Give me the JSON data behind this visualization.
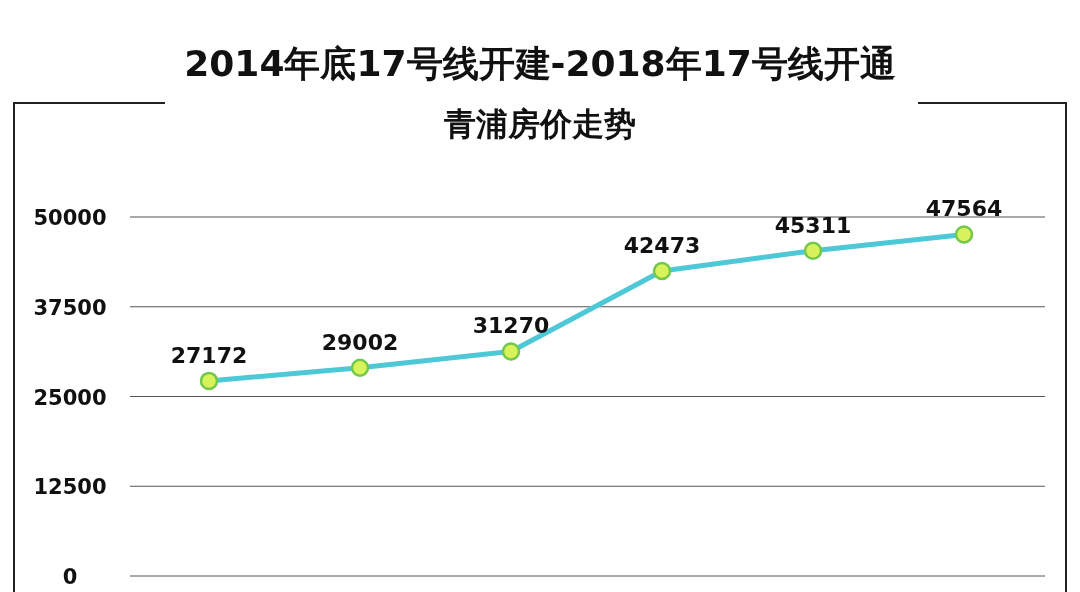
{
  "chart_data": {
    "type": "line",
    "title": "2014年底17号线开建-2018年17号线开通",
    "subtitle": "青浦房价走势",
    "categories": [
      null,
      null,
      null,
      null,
      null,
      null
    ],
    "series": [
      {
        "color": "#4cc8d6",
        "values": [
          27172,
          29002,
          31270,
          42473,
          45311,
          47564
        ]
      }
    ],
    "ylim": [
      0,
      50000
    ],
    "yticks": [
      0,
      12500,
      25000,
      37500,
      50000
    ],
    "grid": "y",
    "marker": "circle",
    "data_labels": true
  }
}
